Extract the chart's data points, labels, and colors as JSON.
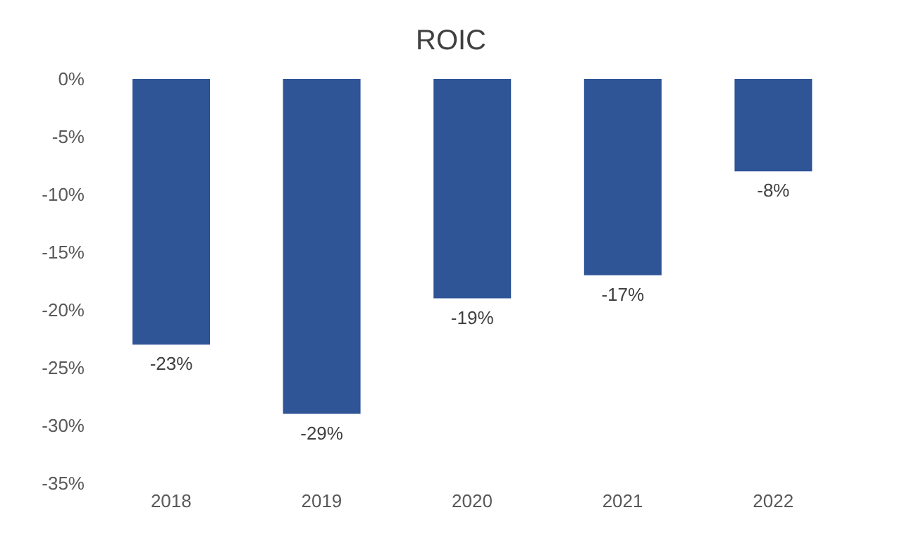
{
  "chart_data": {
    "type": "bar",
    "title": "ROIC",
    "categories": [
      "2018",
      "2019",
      "2020",
      "2021",
      "2022"
    ],
    "values": [
      -23,
      -29,
      -19,
      -17,
      -8
    ],
    "value_labels": [
      "-23%",
      "-29%",
      "-19%",
      "-17%",
      "-8%"
    ],
    "color": "#2f5597",
    "ylim": [
      -35,
      0
    ],
    "yticks": [
      {
        "value": 0,
        "label": "0%"
      },
      {
        "value": -5,
        "label": "-5%"
      },
      {
        "value": -10,
        "label": "-10%"
      },
      {
        "value": -15,
        "label": "-15%"
      },
      {
        "value": -20,
        "label": "-20%"
      },
      {
        "value": -25,
        "label": "-25%"
      },
      {
        "value": -30,
        "label": "-30%"
      },
      {
        "value": -35,
        "label": "-35%"
      }
    ],
    "grid": false,
    "legend": false
  }
}
